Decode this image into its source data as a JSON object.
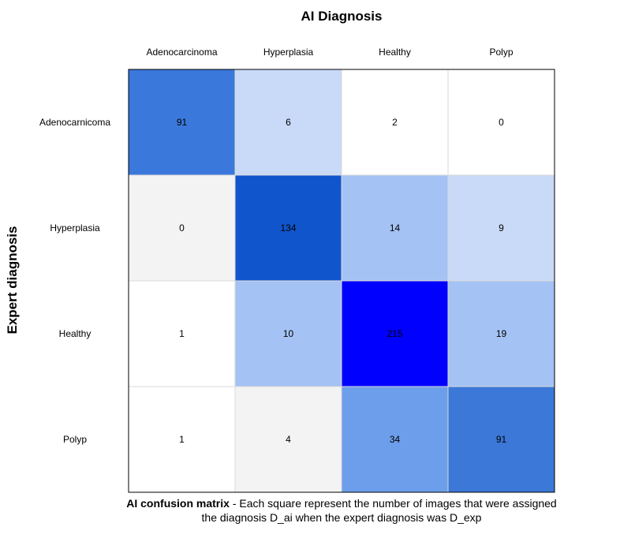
{
  "chart_data": {
    "type": "heatmap",
    "title": "AI Diagnosis",
    "xlabel": "AI Diagnosis",
    "ylabel": "Expert diagnosis",
    "x_categories": [
      "Adenocarcinoma",
      "Hyperplasia",
      "Healthy",
      "Polyp"
    ],
    "y_categories": [
      "Adenocarnicoma",
      "Hyperplasia",
      "Healthy",
      "Polyp"
    ],
    "values": [
      [
        91,
        6,
        2,
        0
      ],
      [
        0,
        134,
        14,
        9
      ],
      [
        1,
        10,
        215,
        19
      ],
      [
        1,
        4,
        34,
        91
      ]
    ],
    "cell_colors": [
      [
        "#3b78db",
        "#c9daf8",
        "#ffffff",
        "#ffffff"
      ],
      [
        "#f3f3f3",
        "#1155cc",
        "#a4c2f4",
        "#c9daf8"
      ],
      [
        "#ffffff",
        "#a4c2f4",
        "#0000ff",
        "#a4c2f4"
      ],
      [
        "#ffffff",
        "#f3f3f3",
        "#6d9eeb",
        "#3c78d8"
      ]
    ],
    "grid_color": "#d9d9d9",
    "border_color": "#000000"
  },
  "caption": {
    "bold": "AI confusion matrix",
    "text": " - Each square represent the number of images that were assigned the diagnosis D_ai when the expert diagnosis was D_exp"
  }
}
